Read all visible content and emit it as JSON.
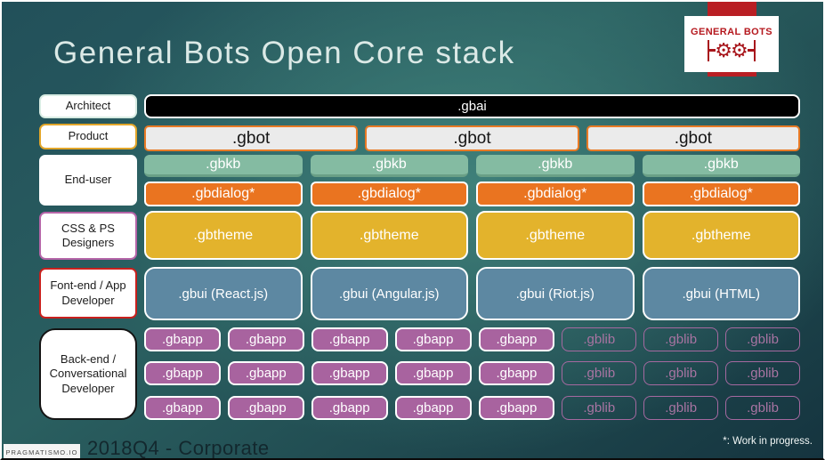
{
  "slide": {
    "title": "General Bots Open Core stack",
    "logo": {
      "text": "GENERAL BOTS"
    },
    "footer": {
      "watermark": "PRAGMATISMO.IO",
      "left_text": "2018Q4 - Corporate",
      "note": "*: Work in progress."
    }
  },
  "roles": {
    "architect": "Architect",
    "product": "Product",
    "end_user": "End-user",
    "designers": "CSS & PS Designers",
    "frontend": "Font-end / App Developer",
    "backend": "Back-end / Conversational Developer"
  },
  "stack": {
    "gbai": ".gbai",
    "gbot": [
      ".gbot",
      ".gbot",
      ".gbot"
    ],
    "gbkb": [
      ".gbkb",
      ".gbkb",
      ".gbkb",
      ".gbkb"
    ],
    "gbdialog": [
      ".gbdialog*",
      ".gbdialog*",
      ".gbdialog*",
      ".gbdialog*"
    ],
    "gbtheme": [
      ".gbtheme",
      ".gbtheme",
      ".gbtheme",
      ".gbtheme"
    ],
    "gbui": [
      ".gbui (React.js)",
      ".gbui (Angular.js)",
      ".gbui (Riot.js)",
      ".gbui (HTML)"
    ],
    "gbapp": ".gbapp",
    "gblib": ".gblib"
  },
  "colors": {
    "background_dark": "#15343f",
    "background_light": "#3f807a",
    "logo_red": "#b91e23",
    "gbai_bg": "#000000",
    "gbot_bg": "#ebebeb",
    "gbot_border": "#e87a25",
    "gbkb_bg": "#84bba2",
    "gbdialog_bg": "#ea7420",
    "gbtheme_bg": "#e3b32c",
    "gbui_bg": "#5d88a2",
    "gbapp_bg": "#a8639f",
    "gblib_border": "#a569a0"
  }
}
